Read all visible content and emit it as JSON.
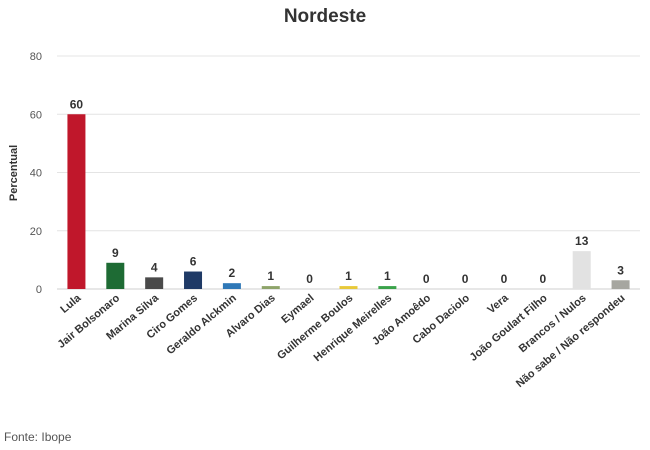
{
  "chart_data": {
    "type": "bar",
    "title": "Nordeste",
    "xlabel": "",
    "ylabel": "Percentual",
    "ylim": [
      0,
      80
    ],
    "yticks": [
      0,
      20,
      40,
      60,
      80
    ],
    "grid": true,
    "legend": "none",
    "categories": [
      "Lula",
      "Jair Bolsonaro",
      "Marina Silva",
      "Ciro Gomes",
      "Geraldo Alckmin",
      "Alvaro Dias",
      "Eymael",
      "Guilherme Boulos",
      "Henrique Meirelles",
      "João Amoêdo",
      "Cabo Daciolo",
      "Vera",
      "João Goulart Filho",
      "Brancos / Nulos",
      "Não sabe / Não respondeu"
    ],
    "values": [
      60,
      9,
      4,
      6,
      2,
      1,
      0,
      1,
      1,
      0,
      0,
      0,
      0,
      13,
      3
    ],
    "colors": [
      "#c0172b",
      "#1e6b34",
      "#4a4a4a",
      "#1f3a66",
      "#2f78b7",
      "#8ea46a",
      "#cccccc",
      "#e8c93a",
      "#3aa34a",
      "#cccccc",
      "#cccccc",
      "#cccccc",
      "#cccccc",
      "#e2e2e2",
      "#a6a6a0"
    ]
  },
  "footer": {
    "source": "Fonte: Ibope"
  }
}
